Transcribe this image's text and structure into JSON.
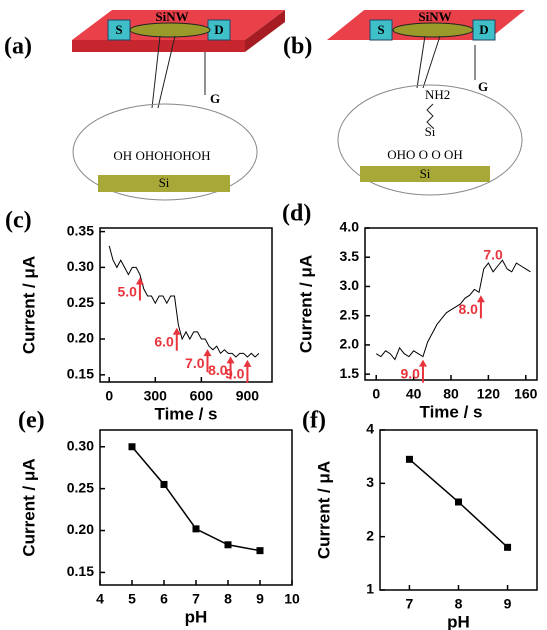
{
  "diagrams": [
    {
      "label": "(a)",
      "source": "S",
      "wire": "SiNW",
      "drain": "D",
      "gate": "G",
      "groups": "OH OHOHOHOH",
      "substrate": "Si"
    },
    {
      "label": "(b)",
      "source": "S",
      "wire": "SiNW",
      "drain": "D",
      "gate": "G",
      "linker": "NH2",
      "linker_atom": "Si",
      "groups": "OHO O O OH",
      "substrate": "Si"
    }
  ],
  "chart_data": [
    {
      "type": "line",
      "title": "(c)",
      "x_label": "Time / s",
      "y_label": "Current / μA",
      "x": [
        0,
        25,
        50,
        75,
        100,
        125,
        150,
        175,
        200,
        225,
        250,
        275,
        300,
        325,
        350,
        375,
        400,
        425,
        450,
        475,
        500,
        525,
        550,
        575,
        600,
        625,
        650,
        675,
        700,
        725,
        750,
        775,
        800,
        825,
        850,
        875,
        900,
        925,
        950,
        975
      ],
      "series": [
        {
          "color": "#000000",
          "values": [
            0.33,
            0.31,
            0.3,
            0.31,
            0.3,
            0.29,
            0.3,
            0.3,
            0.29,
            0.27,
            0.26,
            0.26,
            0.25,
            0.26,
            0.26,
            0.25,
            0.26,
            0.26,
            0.22,
            0.2,
            0.21,
            0.2,
            0.21,
            0.21,
            0.2,
            0.2,
            0.19,
            0.185,
            0.19,
            0.18,
            0.185,
            0.18,
            0.18,
            0.175,
            0.18,
            0.18,
            0.175,
            0.18,
            0.175,
            0.18
          ]
        }
      ],
      "annotations": [
        {
          "text": "5.0",
          "x": 200,
          "arrow": true
        },
        {
          "text": "6.0",
          "x": 440,
          "arrow": true
        },
        {
          "text": "7.0",
          "x": 640,
          "arrow": true
        },
        {
          "text": "8.0",
          "x": 790,
          "arrow": true
        },
        {
          "text": "9.0",
          "x": 900,
          "arrow": true
        }
      ],
      "annotation_color": "#e8343c",
      "xlim": [
        -60,
        1060
      ],
      "xticks": [
        0,
        300,
        600,
        900
      ],
      "ylim": [
        0.14,
        0.355
      ],
      "yticks": [
        0.15,
        {
          "value": 0.2,
          "label": "0.20"
        },
        0.25,
        {
          "value": 0.3,
          "label": "0.30"
        },
        0.35
      ]
    },
    {
      "type": "line",
      "title": "(d)",
      "x_label": "Time / s",
      "y_label": "Current / μA",
      "x": [
        0,
        5,
        10,
        15,
        20,
        25,
        30,
        35,
        40,
        45,
        50,
        55,
        60,
        65,
        70,
        75,
        80,
        85,
        90,
        95,
        100,
        105,
        110,
        115,
        120,
        125,
        130,
        135,
        140,
        145,
        150,
        155,
        160,
        165
      ],
      "series": [
        {
          "color": "#000000",
          "values": [
            1.85,
            1.8,
            1.9,
            1.85,
            1.75,
            1.95,
            1.85,
            1.8,
            1.9,
            1.85,
            1.8,
            2.05,
            2.2,
            2.35,
            2.45,
            2.55,
            2.6,
            2.65,
            2.7,
            2.8,
            2.85,
            2.95,
            2.9,
            3.3,
            3.4,
            3.25,
            3.35,
            3.45,
            3.3,
            3.25,
            3.4,
            3.35,
            3.3,
            3.25
          ]
        }
      ],
      "annotations": [
        {
          "text": "9.0",
          "x": 50,
          "arrow": true
        },
        {
          "text": "8.0",
          "x": 112,
          "arrow": true
        },
        {
          "text": "7.0",
          "x": 125,
          "arrow": false
        }
      ],
      "annotation_color": "#e8343c",
      "xlim": [
        -12,
        172
      ],
      "xticks": [
        0,
        40,
        80,
        120,
        160
      ],
      "ylim": [
        1.4,
        4.0
      ],
      "yticks": [
        1.5,
        {
          "value": 2,
          "label": "2.0"
        },
        2.5,
        {
          "value": 3,
          "label": "3.0"
        },
        3.5,
        {
          "value": 4,
          "label": "4.0"
        }
      ]
    },
    {
      "type": "line",
      "title": "(e)",
      "x_label": "pH",
      "y_label": "Current / μA",
      "markers": true,
      "x": [
        5,
        6,
        7,
        8,
        9
      ],
      "series": [
        {
          "color": "#000000",
          "values": [
            0.3,
            0.255,
            0.202,
            0.183,
            0.176
          ]
        }
      ],
      "xlim": [
        4,
        10
      ],
      "xticks": [
        4,
        5,
        6,
        7,
        8,
        9,
        10
      ],
      "ylim": [
        0.135,
        0.32
      ],
      "yticks": [
        0.15,
        {
          "value": 0.2,
          "label": "0.20"
        },
        0.25,
        {
          "value": 0.3,
          "label": "0.30"
        }
      ]
    },
    {
      "type": "line",
      "title": "(f)",
      "x_label": "pH",
      "y_label": "Current / μA",
      "markers": true,
      "x": [
        7,
        8,
        9
      ],
      "series": [
        {
          "color": "#000000",
          "values": [
            3.45,
            2.65,
            1.8
          ]
        }
      ],
      "xlim": [
        6.4,
        9.6
      ],
      "xticks": [
        7,
        8,
        9
      ],
      "ylim": [
        1,
        4
      ],
      "yticks": [
        1,
        2,
        3,
        4
      ]
    }
  ]
}
